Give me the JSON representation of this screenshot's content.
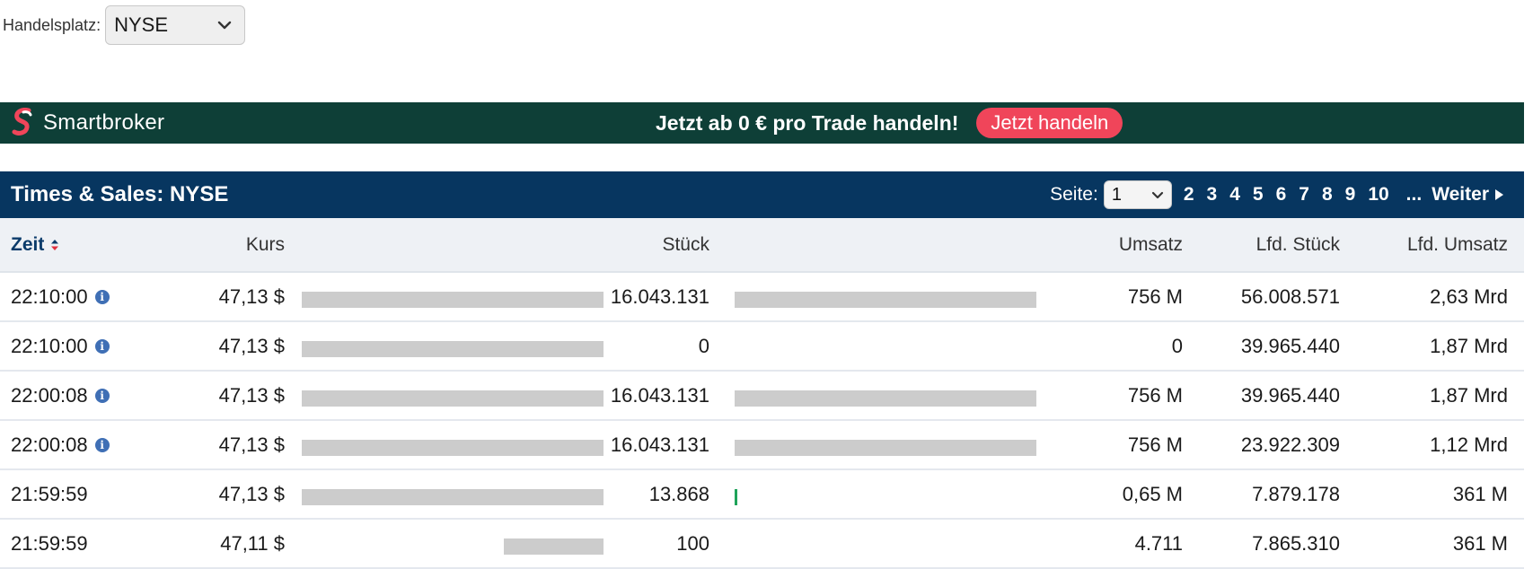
{
  "exchange_selector": {
    "label": "Handelsplatz:",
    "value": "NYSE"
  },
  "banner": {
    "brand": "Smartbroker",
    "text": "Jetzt ab 0 € pro Trade handeln!",
    "cta": "Jetzt handeln",
    "colors": {
      "background": "#0e3f37",
      "cta": "#f0455a"
    }
  },
  "section": {
    "title": "Times & Sales: NYSE",
    "pager": {
      "label": "Seite:",
      "current": "1",
      "pages": [
        "2",
        "3",
        "4",
        "5",
        "6",
        "7",
        "8",
        "9",
        "10"
      ],
      "ellipsis": "...",
      "next": "Weiter"
    }
  },
  "table": {
    "headers": {
      "zeit": "Zeit",
      "kurs": "Kurs",
      "stueck": "Stück",
      "umsatz": "Umsatz",
      "lfd_stueck": "Lfd. Stück",
      "lfd_umsatz": "Lfd. Umsatz"
    },
    "rows": [
      {
        "zeit": "22:10:00",
        "info": true,
        "kurs": "47,13 $",
        "kurs_bar": 1.0,
        "stueck": "16.043.131",
        "stueck_bar": 1.0,
        "stueck_bar_color": "gray",
        "umsatz": "756 M",
        "lfd_stueck": "56.008.571",
        "lfd_umsatz": "2,63 Mrd"
      },
      {
        "zeit": "22:10:00",
        "info": true,
        "kurs": "47,13 $",
        "kurs_bar": 1.0,
        "stueck": "0",
        "stueck_bar": 0,
        "stueck_bar_color": "gray",
        "umsatz": "0",
        "lfd_stueck": "39.965.440",
        "lfd_umsatz": "1,87 Mrd"
      },
      {
        "zeit": "22:00:08",
        "info": true,
        "kurs": "47,13 $",
        "kurs_bar": 1.0,
        "stueck": "16.043.131",
        "stueck_bar": 1.0,
        "stueck_bar_color": "gray",
        "umsatz": "756 M",
        "lfd_stueck": "39.965.440",
        "lfd_umsatz": "1,87 Mrd"
      },
      {
        "zeit": "22:00:08",
        "info": true,
        "kurs": "47,13 $",
        "kurs_bar": 1.0,
        "stueck": "16.043.131",
        "stueck_bar": 1.0,
        "stueck_bar_color": "gray",
        "umsatz": "756 M",
        "lfd_stueck": "23.922.309",
        "lfd_umsatz": "1,12 Mrd"
      },
      {
        "zeit": "21:59:59",
        "info": false,
        "kurs": "47,13 $",
        "kurs_bar": 1.0,
        "stueck": "13.868",
        "stueck_bar": 0.01,
        "stueck_bar_color": "green",
        "umsatz": "0,65 M",
        "lfd_stueck": "7.879.178",
        "lfd_umsatz": "361 M"
      },
      {
        "zeit": "21:59:59",
        "info": false,
        "kurs": "47,11 $",
        "kurs_bar": 0.33,
        "stueck": "100",
        "stueck_bar": 0,
        "stueck_bar_color": "gray",
        "umsatz": "4.711",
        "lfd_stueck": "7.865.310",
        "lfd_umsatz": "361 M"
      }
    ]
  }
}
